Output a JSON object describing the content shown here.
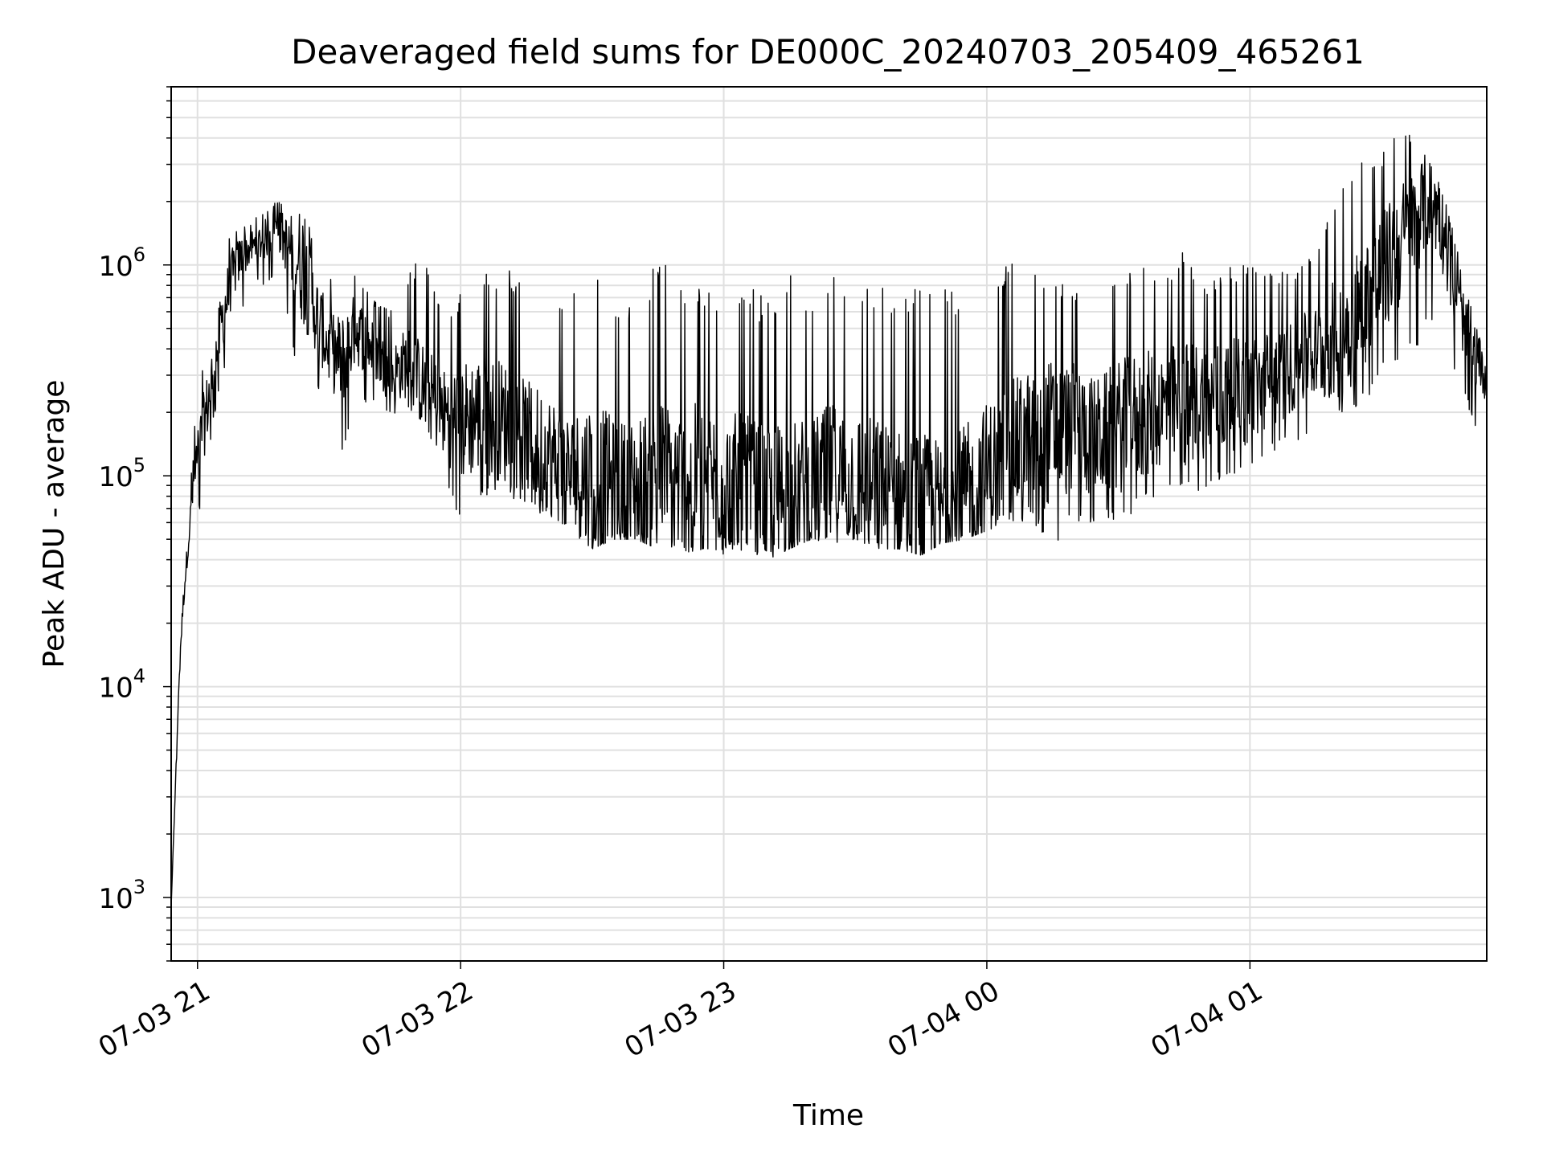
{
  "chart_data": {
    "type": "line",
    "title": "Deaveraged field sums for DE000C_20240703_205409_465261",
    "xlabel": "Time",
    "ylabel": "Peak ADU - average",
    "y_scale": "log",
    "ylim": [
      500,
      7000000
    ],
    "xlim": [
      "2024-07-03 20:54",
      "2024-07-04 01:54"
    ],
    "grid": true,
    "line_color": "#000000",
    "grid_color": "#e0e0e0",
    "x_ticks": [
      {
        "t": "2024-07-03 21:00",
        "label": "07-03 21"
      },
      {
        "t": "2024-07-03 22:00",
        "label": "07-03 22"
      },
      {
        "t": "2024-07-03 23:00",
        "label": "07-03 23"
      },
      {
        "t": "2024-07-04 00:00",
        "label": "07-04 00"
      },
      {
        "t": "2024-07-04 01:00",
        "label": "07-04 01"
      }
    ],
    "y_ticks": [
      {
        "value": 1000,
        "base": "10",
        "exp": "3"
      },
      {
        "value": 10000,
        "base": "10",
        "exp": "4"
      },
      {
        "value": 100000,
        "base": "10",
        "exp": "5"
      },
      {
        "value": 1000000,
        "base": "10",
        "exp": "6"
      }
    ],
    "series": [
      {
        "x": [
          "2024-07-03 20:54",
          "2024-07-03 20:56",
          "2024-07-03 20:57",
          "2024-07-03 20:58",
          "2024-07-03 20:59",
          "2024-07-03 21:00",
          "2024-07-03 21:02",
          "2024-07-03 21:04",
          "2024-07-03 21:06",
          "2024-07-03 21:08",
          "2024-07-03 21:10",
          "2024-07-03 21:12",
          "2024-07-03 21:15",
          "2024-07-03 21:18",
          "2024-07-03 21:21",
          "2024-07-03 21:24",
          "2024-07-03 21:27",
          "2024-07-03 21:30",
          "2024-07-03 21:33",
          "2024-07-03 21:36",
          "2024-07-03 21:40",
          "2024-07-03 21:44",
          "2024-07-03 21:48",
          "2024-07-03 21:52",
          "2024-07-03 21:56",
          "2024-07-03 22:00",
          "2024-07-03 22:05",
          "2024-07-03 22:10",
          "2024-07-03 22:15",
          "2024-07-03 22:20",
          "2024-07-03 22:25",
          "2024-07-03 22:30",
          "2024-07-03 22:35",
          "2024-07-03 22:40",
          "2024-07-03 22:45",
          "2024-07-03 22:50",
          "2024-07-03 22:55",
          "2024-07-03 23:00",
          "2024-07-03 23:05",
          "2024-07-03 23:10",
          "2024-07-03 23:15",
          "2024-07-03 23:20",
          "2024-07-03 23:25",
          "2024-07-03 23:30",
          "2024-07-03 23:35",
          "2024-07-03 23:40",
          "2024-07-03 23:45",
          "2024-07-03 23:50",
          "2024-07-03 23:55",
          "2024-07-04 00:00",
          "2024-07-04 00:05",
          "2024-07-04 00:10",
          "2024-07-04 00:15",
          "2024-07-04 00:20",
          "2024-07-04 00:25",
          "2024-07-04 00:30",
          "2024-07-04 00:35",
          "2024-07-04 00:40",
          "2024-07-04 00:45",
          "2024-07-04 00:50",
          "2024-07-04 00:55",
          "2024-07-04 01:00",
          "2024-07-04 01:05",
          "2024-07-04 01:10",
          "2024-07-04 01:15",
          "2024-07-04 01:20",
          "2024-07-04 01:25",
          "2024-07-04 01:30",
          "2024-07-04 01:35",
          "2024-07-04 01:38",
          "2024-07-04 01:40",
          "2024-07-04 01:43",
          "2024-07-04 01:46",
          "2024-07-04 01:49",
          "2024-07-04 01:52",
          "2024-07-04 01:54"
        ],
        "y": [
          900,
          14000,
          30000,
          50000,
          90000,
          120000,
          200000,
          350000,
          600000,
          900000,
          1100000,
          1200000,
          1300000,
          1500000,
          1200000,
          1000000,
          600000,
          400000,
          350000,
          500000,
          400000,
          300000,
          350000,
          250000,
          200000,
          180000,
          200000,
          180000,
          150000,
          130000,
          100000,
          100000,
          90000,
          90000,
          100000,
          95000,
          100000,
          95000,
          90000,
          80000,
          85000,
          90000,
          100000,
          95000,
          85000,
          80000,
          70000,
          70000,
          85000,
          100000,
          130000,
          150000,
          160000,
          170000,
          150000,
          170000,
          190000,
          210000,
          220000,
          230000,
          240000,
          250000,
          290000,
          330000,
          380000,
          450000,
          600000,
          900000,
          1300000,
          1600000,
          2000000,
          1800000,
          900000,
          500000,
          350000,
          280000
        ],
        "y_low": [
          900,
          12000,
          20000,
          40000,
          50000,
          60000,
          100000,
          200000,
          300000,
          500000,
          600000,
          800000,
          800000,
          900000,
          500000,
          150000,
          250000,
          200000,
          120000,
          200000,
          220000,
          190000,
          200000,
          180000,
          100000,
          60000,
          80000,
          80000,
          75000,
          60000,
          55000,
          45000,
          50000,
          50000,
          45000,
          45000,
          40000,
          42000,
          45000,
          40000,
          45000,
          50000,
          48000,
          50000,
          45000,
          45000,
          42000,
          48000,
          50000,
          55000,
          60000,
          60000,
          45000,
          60000,
          60000,
          60000,
          70000,
          80000,
          80000,
          85000,
          100000,
          110000,
          130000,
          140000,
          170000,
          180000,
          200000,
          300000,
          350000,
          400000,
          500000,
          450000,
          300000,
          230000,
          140000,
          140000
        ],
        "y_high": [
          900,
          15000,
          35000,
          60000,
          150000,
          250000,
          400000,
          700000,
          1200000,
          1500000,
          1500000,
          1600000,
          1800000,
          2000000,
          1900000,
          1800000,
          1300000,
          900000,
          800000,
          900000,
          700000,
          600000,
          900000,
          1200000,
          600000,
          750000,
          900000,
          1000000,
          800000,
          700000,
          650000,
          1300000,
          700000,
          750000,
          1100000,
          900000,
          800000,
          700000,
          800000,
          700000,
          900000,
          750000,
          1000000,
          900000,
          850000,
          700000,
          900000,
          800000,
          700000,
          1150000,
          1000000,
          1100000,
          950000,
          800000,
          700000,
          900000,
          1000000,
          850000,
          1200000,
          850000,
          1000000,
          1000000,
          1000000,
          900000,
          1200000,
          2500000,
          3000000,
          3500000,
          4500000,
          3800000,
          3500000,
          2500000,
          1600000,
          800000,
          500000,
          300000
        ]
      }
    ]
  }
}
